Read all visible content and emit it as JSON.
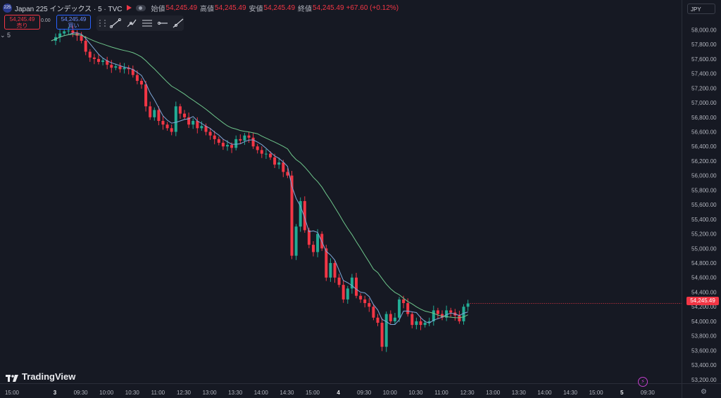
{
  "header": {
    "badge": "225",
    "symbol": "Japan 225 インデックス · 5 · TVC",
    "open_label": "始値",
    "open": "54,245.49",
    "high_label": "高値",
    "high": "54,245.49",
    "low_label": "安値",
    "low": "54,245.49",
    "close_label": "終値",
    "close": "54,245.49",
    "change": "+67.60 (+0.12%)"
  },
  "trade": {
    "sell_price": "54,245.49",
    "sell_label": "売り",
    "spread": "0.00",
    "buy_price": "54,245.49",
    "buy_label": "買い"
  },
  "study_label": "⌄ 5",
  "toolbar": {
    "icons": [
      "trend-line-icon",
      "pitchfork-icon",
      "fib-icon",
      "horizontal-ray-icon",
      "extended-line-icon"
    ]
  },
  "currency": "JPY",
  "last_price": "54,245.49",
  "logo": "TradingView",
  "colors": {
    "background": "#161923",
    "up": "#22ab94",
    "down": "#f23645",
    "ma_fast": "#7fa7d9",
    "ma_slow": "#6ec68b"
  },
  "chart_data": {
    "type": "candlestick",
    "y_ticks": [
      "58,000.00",
      "57,800.00",
      "57,600.00",
      "57,400.00",
      "57,200.00",
      "57,000.00",
      "56,800.00",
      "56,600.00",
      "56,400.00",
      "56,200.00",
      "56,000.00",
      "55,800.00",
      "55,600.00",
      "55,400.00",
      "55,200.00",
      "55,000.00",
      "54,800.00",
      "54,600.00",
      "54,400.00",
      "54,200.00",
      "54,000.00",
      "53,800.00",
      "53,600.00",
      "53,400.00",
      "53,200.00"
    ],
    "y_tick_values": [
      58000,
      57800,
      57600,
      57400,
      57200,
      57000,
      56800,
      56600,
      56400,
      56200,
      56000,
      55800,
      55600,
      55400,
      55200,
      55000,
      54800,
      54600,
      54400,
      54200,
      54000,
      53800,
      53600,
      53400,
      53200
    ],
    "ylim": [
      53150,
      58120
    ],
    "x_ticks": [
      {
        "label": "15:00",
        "t": -10
      },
      {
        "label": "3",
        "t": 0
      },
      {
        "label": "09:30",
        "t": 6
      },
      {
        "label": "10:00",
        "t": 12
      },
      {
        "label": "10:30",
        "t": 18
      },
      {
        "label": "11:00",
        "t": 24
      },
      {
        "label": "12:30",
        "t": 30
      },
      {
        "label": "13:00",
        "t": 36
      },
      {
        "label": "13:30",
        "t": 42
      },
      {
        "label": "14:00",
        "t": 48
      },
      {
        "label": "14:30",
        "t": 54
      },
      {
        "label": "15:00",
        "t": 60
      },
      {
        "label": "4",
        "t": 66
      },
      {
        "label": "09:30",
        "t": 72
      },
      {
        "label": "10:00",
        "t": 78
      },
      {
        "label": "10:30",
        "t": 84
      },
      {
        "label": "11:00",
        "t": 90
      },
      {
        "label": "12:30",
        "t": 96
      },
      {
        "label": "13:00",
        "t": 102
      },
      {
        "label": "13:30",
        "t": 108
      },
      {
        "label": "14:00",
        "t": 114
      },
      {
        "label": "14:30",
        "t": 120
      },
      {
        "label": "15:00",
        "t": 126
      },
      {
        "label": "5",
        "t": 132
      },
      {
        "label": "09:30",
        "t": 138
      }
    ],
    "closes": [
      57850,
      57900,
      57950,
      57980,
      57990,
      57960,
      57920,
      57850,
      57700,
      57620,
      57600,
      57560,
      57580,
      57520,
      57480,
      57500,
      57460,
      57480,
      57460,
      57380,
      57300,
      57250,
      56950,
      56800,
      56900,
      56750,
      56700,
      56650,
      56600,
      56950,
      56850,
      56800,
      56700,
      56750,
      56650,
      56680,
      56600,
      56550,
      56500,
      56450,
      56400,
      56420,
      56380,
      56500,
      56480,
      56550,
      56520,
      56400,
      56350,
      56300,
      56300,
      56250,
      56150,
      56180,
      56050,
      56000,
      54900,
      55300,
      55650,
      55250,
      55050,
      54950,
      55200,
      55000,
      54600,
      54800,
      54600,
      54500,
      54300,
      54450,
      54600,
      54350,
      54300,
      54250,
      54200,
      54050,
      53980,
      53650,
      54100,
      54000,
      54050,
      54300,
      54250,
      54100,
      53950,
      54000,
      53950,
      53980,
      54000,
      54150,
      54100,
      54050,
      54150,
      54120,
      54080,
      54000,
      54200,
      54245
    ],
    "current_price": 54245.49,
    "series": [
      {
        "name": "5"
      }
    ]
  }
}
